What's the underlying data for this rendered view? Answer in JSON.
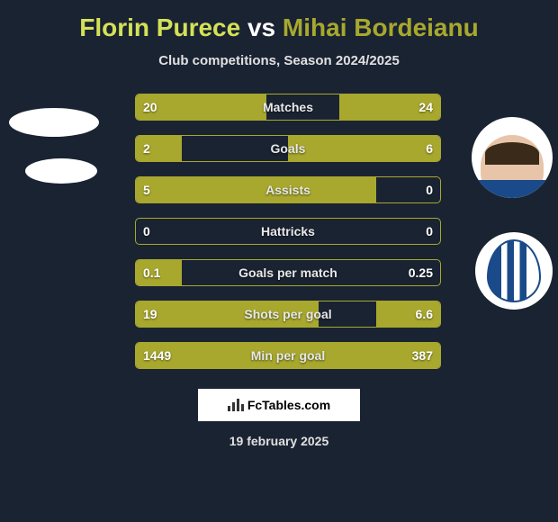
{
  "title": {
    "player1": "Florin Purece",
    "vs": "vs",
    "player2": "Mihai Bordeianu"
  },
  "subtitle": "Club competitions, Season 2024/2025",
  "colors": {
    "p1": "#d4e157",
    "p2": "#a8a82e",
    "bar": "#a8a82e",
    "bg": "#1a2332",
    "subtitle": "#e0e0e0"
  },
  "stats": [
    {
      "label": "Matches",
      "left_val": "20",
      "right_val": "24",
      "left_pct": 43,
      "right_pct": 33
    },
    {
      "label": "Goals",
      "left_val": "2",
      "right_val": "6",
      "left_pct": 15,
      "right_pct": 50
    },
    {
      "label": "Assists",
      "left_val": "5",
      "right_val": "0",
      "left_pct": 79,
      "right_pct": 0
    },
    {
      "label": "Hattricks",
      "left_val": "0",
      "right_val": "0",
      "left_pct": 0,
      "right_pct": 0
    },
    {
      "label": "Goals per match",
      "left_val": "0.1",
      "right_val": "0.25",
      "left_pct": 15,
      "right_pct": 0
    },
    {
      "label": "Shots per goal",
      "left_val": "19",
      "right_val": "6.6",
      "left_pct": 60,
      "right_pct": 21
    },
    {
      "label": "Min per goal",
      "left_val": "1449",
      "right_val": "387",
      "left_pct": 85,
      "right_pct": 22
    }
  ],
  "fctables_label": "FcTables.com",
  "date": "19 february 2025"
}
